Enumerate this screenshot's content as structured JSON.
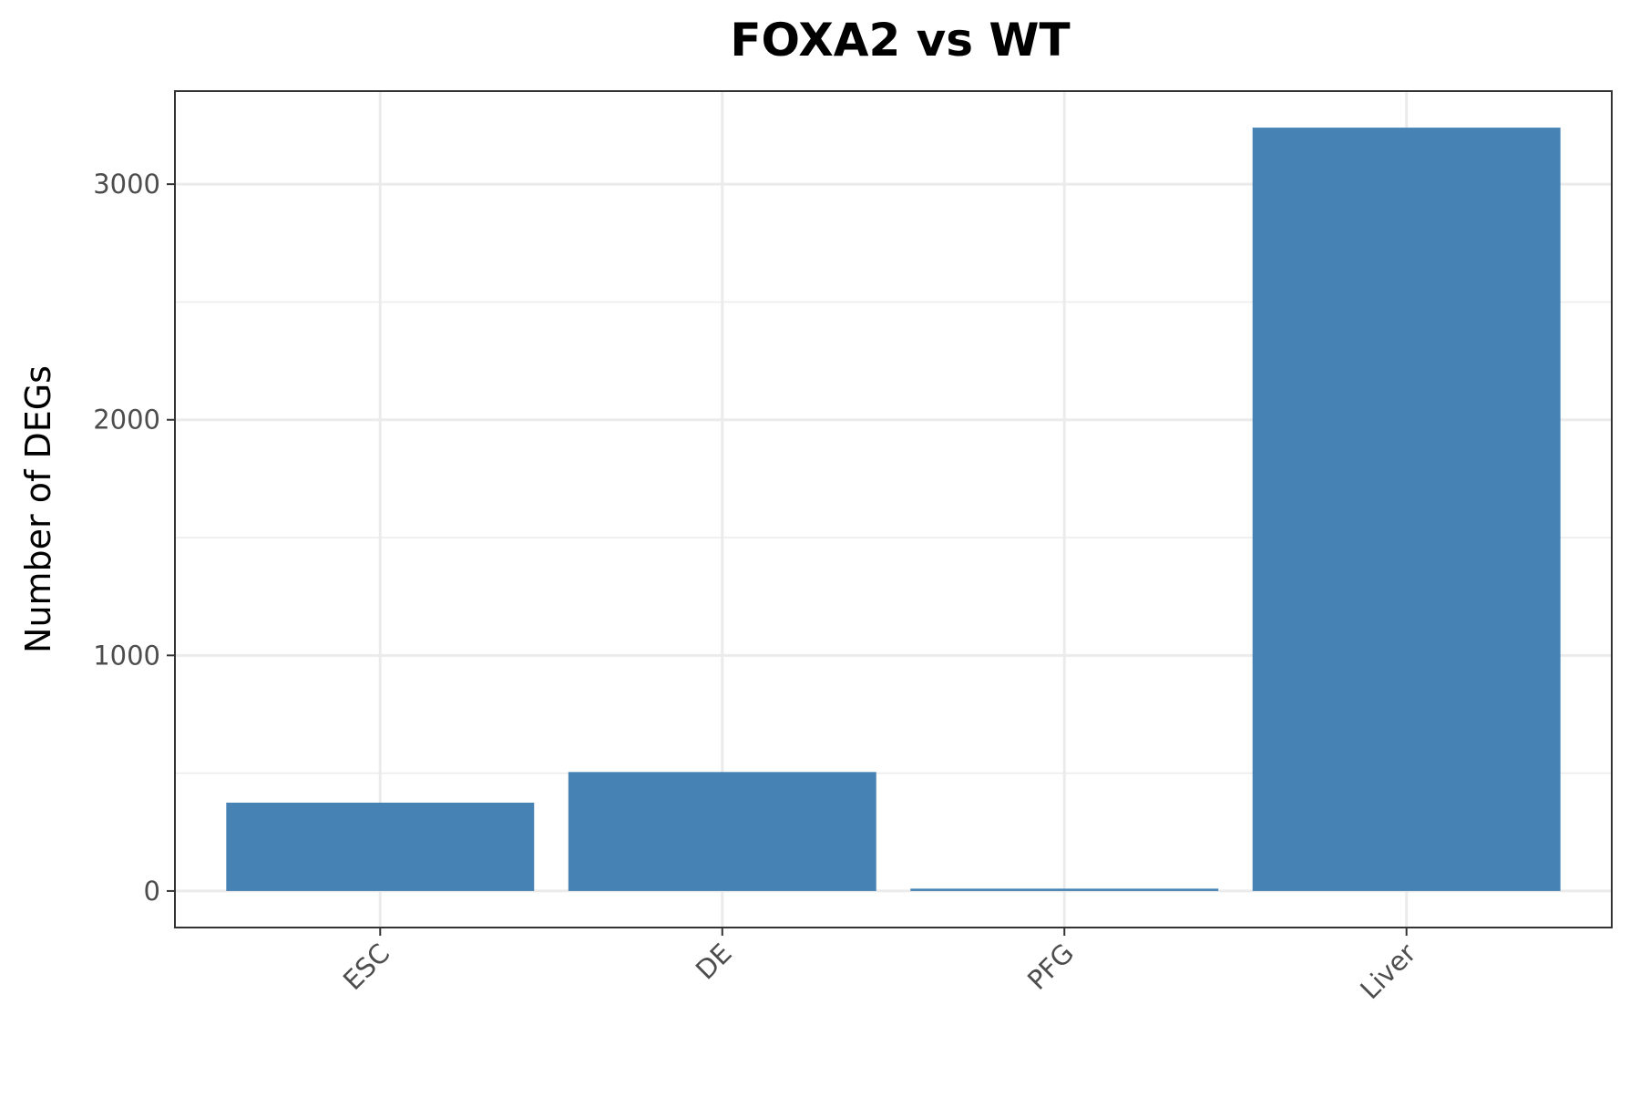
{
  "chart_data": {
    "type": "bar",
    "title": "FOXA2 vs WT",
    "xlabel": "",
    "ylabel": "Number of DEGs",
    "categories": [
      "ESC",
      "DE",
      "PFG",
      "Liver"
    ],
    "values": [
      375,
      505,
      10,
      3240
    ],
    "ylim": [
      -155,
      3395
    ],
    "y_ticks": [
      0,
      1000,
      2000,
      3000
    ],
    "y_minor_ticks": [
      500,
      1500,
      2500
    ],
    "x_tick_rotation": -45,
    "grid": true,
    "legend": "none",
    "colors": {
      "bar": "#4682B4",
      "grid": "#EBEBEB",
      "panel_border": "#333333",
      "tick_label": "#4D4D4D",
      "title": "#000000"
    }
  }
}
